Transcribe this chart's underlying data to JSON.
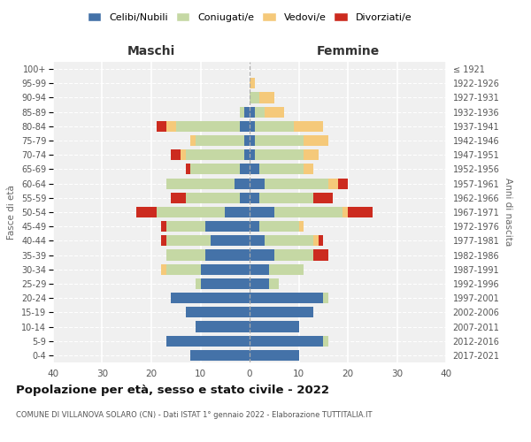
{
  "age_groups": [
    "0-4",
    "5-9",
    "10-14",
    "15-19",
    "20-24",
    "25-29",
    "30-34",
    "35-39",
    "40-44",
    "45-49",
    "50-54",
    "55-59",
    "60-64",
    "65-69",
    "70-74",
    "75-79",
    "80-84",
    "85-89",
    "90-94",
    "95-99",
    "100+"
  ],
  "birth_years": [
    "2017-2021",
    "2012-2016",
    "2007-2011",
    "2002-2006",
    "1997-2001",
    "1992-1996",
    "1987-1991",
    "1982-1986",
    "1977-1981",
    "1972-1976",
    "1967-1971",
    "1962-1966",
    "1957-1961",
    "1952-1956",
    "1947-1951",
    "1942-1946",
    "1937-1941",
    "1932-1936",
    "1927-1931",
    "1922-1926",
    "≤ 1921"
  ],
  "maschi": {
    "celibi": [
      12,
      17,
      11,
      13,
      16,
      10,
      10,
      9,
      8,
      9,
      5,
      2,
      3,
      2,
      1,
      1,
      2,
      1,
      0,
      0,
      0
    ],
    "coniugati": [
      0,
      0,
      0,
      0,
      0,
      1,
      7,
      8,
      9,
      8,
      14,
      11,
      14,
      10,
      12,
      10,
      13,
      1,
      0,
      0,
      0
    ],
    "vedovi": [
      0,
      0,
      0,
      0,
      0,
      0,
      1,
      0,
      0,
      0,
      0,
      0,
      0,
      0,
      1,
      1,
      2,
      0,
      0,
      0,
      0
    ],
    "divorziati": [
      0,
      0,
      0,
      0,
      0,
      0,
      0,
      0,
      1,
      1,
      4,
      3,
      0,
      1,
      2,
      0,
      2,
      0,
      0,
      0,
      0
    ]
  },
  "femmine": {
    "nubili": [
      10,
      15,
      10,
      13,
      15,
      4,
      4,
      5,
      3,
      2,
      5,
      2,
      3,
      2,
      1,
      1,
      1,
      1,
      0,
      0,
      0
    ],
    "coniugate": [
      0,
      1,
      0,
      0,
      1,
      2,
      7,
      8,
      10,
      8,
      14,
      11,
      13,
      9,
      10,
      10,
      8,
      2,
      2,
      0,
      0
    ],
    "vedove": [
      0,
      0,
      0,
      0,
      0,
      0,
      0,
      0,
      1,
      1,
      1,
      0,
      2,
      2,
      3,
      5,
      6,
      4,
      3,
      1,
      0
    ],
    "divorziate": [
      0,
      0,
      0,
      0,
      0,
      0,
      0,
      3,
      1,
      0,
      5,
      4,
      2,
      0,
      0,
      0,
      0,
      0,
      0,
      0,
      0
    ]
  },
  "colors": {
    "celibi": "#4472a8",
    "coniugati": "#c5d8a4",
    "vedovi": "#f5c97a",
    "divorziati": "#cc2b1f"
  },
  "title": "Popolazione per età, sesso e stato civile - 2022",
  "subtitle": "COMUNE DI VILLANOVA SOLARO (CN) - Dati ISTAT 1° gennaio 2022 - Elaborazione TUTTITALIA.IT",
  "xlabel_left": "Maschi",
  "xlabel_right": "Femmine",
  "ylabel_left": "Fasce di età",
  "ylabel_right": "Anni di nascita",
  "xlim": 40,
  "legend_labels": [
    "Celibi/Nubili",
    "Coniugati/e",
    "Vedovi/e",
    "Divorziati/e"
  ],
  "bg_color": "#f0f0f0"
}
